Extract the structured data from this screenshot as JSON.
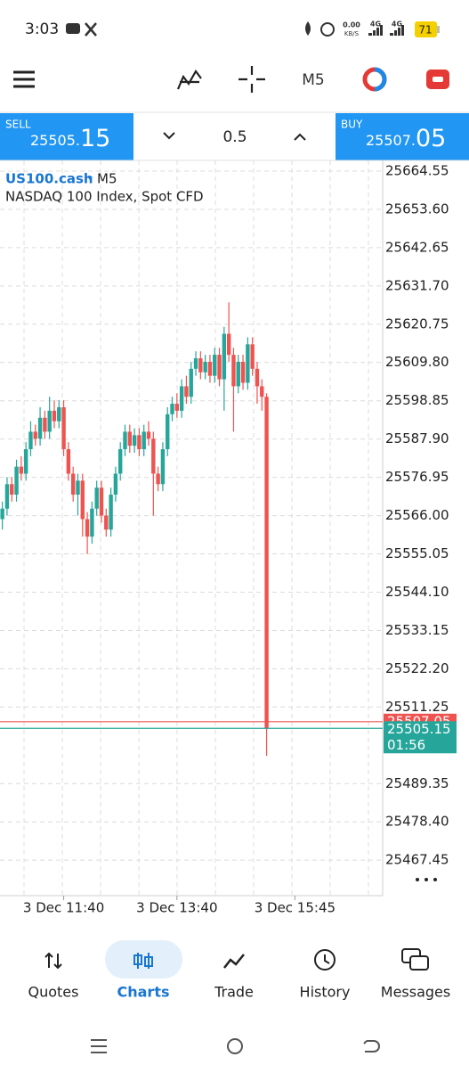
{
  "status_bar": {
    "time": "3:03",
    "network_speed": "0.00",
    "network_unit": "KB/S",
    "signal_1": "4G",
    "signal_2": "4G",
    "battery": "71"
  },
  "toolbar": {
    "timeframe": "M5"
  },
  "trade_panel": {
    "sell_label": "SELL",
    "sell_price_main": "25505.",
    "sell_price_big": "15",
    "volume": "0.5",
    "buy_label": "BUY",
    "buy_price_main": "25507.",
    "buy_price_big": "05"
  },
  "chart_data": {
    "type": "candlestick",
    "symbol": "US100.cash",
    "timeframe": "M5",
    "description": "NASDAQ 100 Index, Spot CFD",
    "open": [
      25565,
      25568,
      25575,
      25572,
      25580,
      25578,
      25585,
      25590,
      25588,
      25594,
      25590,
      25596,
      25593,
      25597,
      25585,
      25578,
      25572,
      25576,
      25565,
      25560,
      25568,
      25574,
      25566,
      25562,
      25572,
      25578,
      25585,
      25590,
      25586,
      25589,
      25585,
      25590,
      25588,
      25578,
      25575,
      25585,
      25595,
      25598,
      25596,
      25603,
      25600,
      25608,
      25611,
      25607,
      25610,
      25606,
      25612,
      25605,
      25618,
      25612,
      25603,
      25610,
      25604,
      25615,
      25608,
      25603,
      25600
    ],
    "high": [
      25570,
      25577,
      25577,
      25582,
      25583,
      25587,
      25593,
      25592,
      25597,
      25596,
      25600,
      25599,
      25599,
      25599,
      25587,
      25580,
      25578,
      25578,
      25567,
      25570,
      25576,
      25576,
      25568,
      25574,
      25580,
      25587,
      25592,
      25592,
      25591,
      25591,
      25592,
      25593,
      25590,
      25580,
      25587,
      25597,
      25600,
      25601,
      25605,
      25606,
      25610,
      25613,
      25613,
      25612,
      25612,
      25614,
      25614,
      25620,
      25627,
      25614,
      25612,
      25612,
      25617,
      25617,
      25610,
      25605,
      25601
    ],
    "low": [
      25562,
      25566,
      25570,
      25570,
      25576,
      25576,
      25583,
      25586,
      25586,
      25588,
      25588,
      25591,
      25591,
      25583,
      25576,
      25570,
      25566,
      25560,
      25555,
      25558,
      25566,
      25564,
      25560,
      25560,
      25570,
      25576,
      25583,
      25584,
      25584,
      25583,
      25583,
      25586,
      25566,
      25573,
      25573,
      25583,
      25593,
      25594,
      25594,
      25598,
      25598,
      25606,
      25605,
      25605,
      25604,
      25604,
      25603,
      25596,
      25610,
      25590,
      25601,
      25602,
      25602,
      25606,
      25598,
      25596,
      25497.3
    ],
    "close": [
      25568,
      25575,
      25572,
      25580,
      25578,
      25585,
      25590,
      25588,
      25594,
      25590,
      25596,
      25593,
      25597,
      25585,
      25578,
      25572,
      25576,
      25565,
      25560,
      25568,
      25574,
      25566,
      25562,
      25572,
      25578,
      25585,
      25590,
      25586,
      25589,
      25585,
      25590,
      25588,
      25578,
      25575,
      25585,
      25595,
      25598,
      25596,
      25603,
      25600,
      25608,
      25611,
      25607,
      25610,
      25606,
      25612,
      25605,
      25618,
      25612,
      25603,
      25610,
      25604,
      25615,
      25608,
      25603,
      25600,
      25505.15
    ],
    "up_color": "#26a69a",
    "down_color": "#ef5350",
    "ylim": [
      25457.3,
      25667.6
    ],
    "yticks": [
      25664.55,
      {
        "value": 25653.6,
        "label": "25653.60"
      },
      25642.65,
      {
        "value": 25631.7,
        "label": "25631.70"
      },
      25620.75,
      {
        "value": 25609.8,
        "label": "25609.80"
      },
      25598.85,
      {
        "value": 25587.9,
        "label": "25587.90"
      },
      25576.95,
      {
        "value": 25566,
        "label": "25566.00"
      },
      25555.05,
      {
        "value": 25544.1,
        "label": "25544.10"
      },
      25533.15,
      {
        "value": 25522.2,
        "label": "25522.20"
      },
      25511.25,
      25489.35,
      {
        "value": 25478.4,
        "label": "25478.40"
      },
      25467.45
    ],
    "xlim": [
      -0.5,
      80.6
    ],
    "xticks": [
      {
        "value": 13,
        "label": "3 Dec 11:40"
      },
      {
        "value": 37,
        "label": "3 Dec 13:40"
      },
      {
        "value": 62,
        "label": "3 Dec 15:45"
      }
    ],
    "grid": true,
    "ask_line": {
      "value": 25507.05,
      "label": "25507.05",
      "color": "#ef5350"
    },
    "bid_line": {
      "value": 25505.15,
      "label": "25505.15",
      "color": "#26a69a"
    },
    "countdown": "01:56"
  },
  "nav": {
    "items": [
      "Quotes",
      "Charts",
      "Trade",
      "History",
      "Messages"
    ],
    "active": 1
  }
}
